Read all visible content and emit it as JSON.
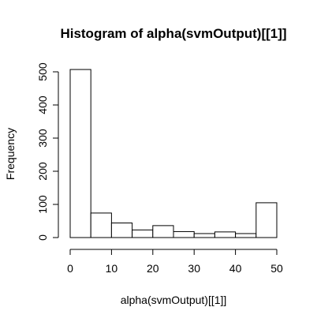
{
  "chart_data": {
    "type": "bar",
    "title": "Histogram of alpha(svmOutput)[[1]]",
    "xlabel": "alpha(svmOutput)[[1]]",
    "ylabel": "Frequency",
    "bins": [
      {
        "start": 0,
        "end": 5,
        "count": 507
      },
      {
        "start": 5,
        "end": 10,
        "count": 74
      },
      {
        "start": 10,
        "end": 15,
        "count": 44
      },
      {
        "start": 15,
        "end": 20,
        "count": 23
      },
      {
        "start": 20,
        "end": 25,
        "count": 36
      },
      {
        "start": 25,
        "end": 30,
        "count": 18
      },
      {
        "start": 30,
        "end": 35,
        "count": 12
      },
      {
        "start": 35,
        "end": 40,
        "count": 17
      },
      {
        "start": 40,
        "end": 45,
        "count": 12
      },
      {
        "start": 45,
        "end": 50,
        "count": 105
      }
    ],
    "xlim": [
      0,
      50
    ],
    "ylim": [
      0,
      520
    ],
    "x_ticks": [
      "0",
      "10",
      "20",
      "30",
      "40",
      "50"
    ],
    "y_ticks": [
      "0",
      "100",
      "200",
      "300",
      "400",
      "500"
    ],
    "grid": false,
    "legend": "none"
  }
}
